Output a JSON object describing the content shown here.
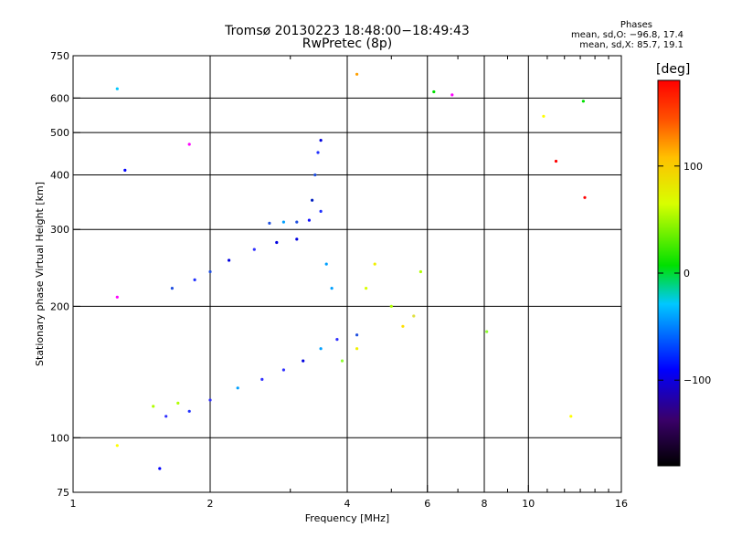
{
  "header": {
    "title_line1": "Tromsø 20130223 18:48:00−18:49:43",
    "title_line2": "RwPretec (8p)"
  },
  "stats": {
    "title": "Phases",
    "line1": "mean, sd,O: −96.8, 17.4",
    "line2": "mean, sd,X:  85.7, 19.1"
  },
  "colorbar": {
    "label": "[deg]",
    "tick_labels": [
      "100",
      "0",
      "−100"
    ]
  },
  "chart_data": {
    "type": "scatter",
    "xlabel": "Frequency [MHz]",
    "ylabel": "Stationary phase Virtual Height [km]",
    "x_scale": "log",
    "y_scale": "log",
    "xlim": [
      1,
      16
    ],
    "ylim": [
      75,
      750
    ],
    "grid": true,
    "x_major_ticks": [
      {
        "value": 1,
        "label": "1"
      },
      {
        "value": 2,
        "label": "2"
      },
      {
        "value": 4,
        "label": "4"
      },
      {
        "value": 6,
        "label": "6"
      },
      {
        "value": 8,
        "label": "8"
      },
      {
        "value": 10,
        "label": "10"
      },
      {
        "value": 16,
        "label": "16"
      }
    ],
    "x_minor_ticks": [
      3,
      5,
      7,
      9,
      11,
      12,
      13,
      14,
      15
    ],
    "y_major_ticks": [
      {
        "value": 75,
        "label": "75"
      },
      {
        "value": 100,
        "label": "100"
      },
      {
        "value": 200,
        "label": "200"
      },
      {
        "value": 300,
        "label": "300"
      },
      {
        "value": 400,
        "label": "400"
      },
      {
        "value": 500,
        "label": "500"
      },
      {
        "value": 600,
        "label": "600"
      },
      {
        "value": 750,
        "label": "750"
      }
    ],
    "colorscale": {
      "name": "rainbow",
      "label": "[deg]",
      "ticks": [
        100,
        0,
        -100
      ]
    },
    "series": [
      {
        "trace": "o-mode lower branch",
        "color_class": "blue",
        "points": [
          [
            1.6,
            112
          ],
          [
            1.8,
            115
          ],
          [
            2.0,
            122
          ],
          [
            2.3,
            130
          ],
          [
            2.6,
            136
          ],
          [
            2.9,
            143
          ],
          [
            3.2,
            150
          ],
          [
            3.5,
            160
          ],
          [
            3.8,
            168
          ],
          [
            4.2,
            172
          ]
        ]
      },
      {
        "trace": "o-mode F1",
        "color_class": "blue",
        "points": [
          [
            1.65,
            220
          ],
          [
            1.85,
            230
          ],
          [
            2.0,
            240
          ],
          [
            2.2,
            255
          ],
          [
            2.5,
            270
          ],
          [
            2.8,
            280
          ],
          [
            3.1,
            285
          ]
        ]
      },
      {
        "trace": "o-mode cusp",
        "color_class": "blue",
        "points": [
          [
            2.7,
            310
          ],
          [
            2.9,
            312
          ],
          [
            3.1,
            312
          ],
          [
            3.3,
            315
          ],
          [
            3.35,
            350
          ],
          [
            3.4,
            400
          ],
          [
            3.45,
            450
          ],
          [
            3.5,
            480
          ],
          [
            3.5,
            330
          ],
          [
            3.6,
            250
          ],
          [
            3.7,
            220
          ]
        ]
      },
      {
        "trace": "x-mode traces",
        "color_class": "yellow-green",
        "points": [
          [
            1.5,
            118
          ],
          [
            1.7,
            120
          ],
          [
            3.9,
            150
          ],
          [
            4.2,
            160
          ],
          [
            4.4,
            220
          ],
          [
            4.6,
            250
          ],
          [
            5.0,
            200
          ],
          [
            5.3,
            180
          ],
          [
            5.6,
            190
          ],
          [
            5.8,
            240
          ],
          [
            8.1,
            175
          ]
        ]
      },
      {
        "trace": "scattered points",
        "color_class": "mixed",
        "points": [
          [
            1.25,
            630
          ],
          [
            1.3,
            410
          ],
          [
            1.25,
            210
          ],
          [
            1.8,
            470
          ],
          [
            4.2,
            680
          ],
          [
            6.2,
            620
          ],
          [
            6.8,
            610
          ],
          [
            10.8,
            545
          ],
          [
            11.5,
            430
          ],
          [
            13.2,
            590
          ],
          [
            13.3,
            355
          ],
          [
            12.4,
            112
          ],
          [
            1.55,
            85
          ],
          [
            1.25,
            96
          ]
        ]
      }
    ]
  }
}
